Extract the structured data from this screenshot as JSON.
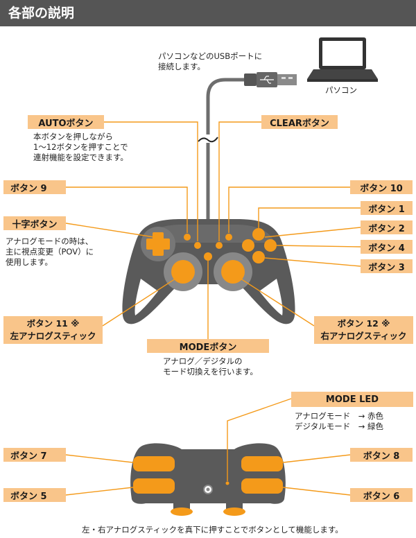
{
  "title": "各部の説明",
  "colors": {
    "accent": "#f49a1a",
    "label_bg": "#f9c58a",
    "controller_body": "#5a5a5a",
    "header_bg": "#555555"
  },
  "usb_note": [
    "パソコンなどのUSBポートに",
    "接続します。"
  ],
  "pc_label": "パソコン",
  "auto": {
    "label": "AUTOボタン",
    "desc": [
      "本ボタンを押しながら",
      "1〜12ボタンを押すことで",
      "連射機能を設定できます。"
    ]
  },
  "clear": {
    "label": "CLEARボタン"
  },
  "button9": "ボタン 9",
  "button10": "ボタン 10",
  "button1": "ボタン 1",
  "button2": "ボタン 2",
  "button4": "ボタン 4",
  "button3": "ボタン 3",
  "dpad": {
    "label": "十字ボタン",
    "desc": [
      "アナログモードの時は、",
      "主に視点変更（POV）に",
      "使用します。"
    ]
  },
  "button11": {
    "line1": "ボタン 11 ※",
    "line2": "左アナログスティック"
  },
  "button12": {
    "line1": "ボタン 12 ※",
    "line2": "右アナログスティック"
  },
  "mode": {
    "label": "MODEボタン",
    "desc": [
      "アナログ／デジタルの",
      "モード切換えを行います。"
    ]
  },
  "mode_led": {
    "label": "MODE LED",
    "desc": [
      "アナログモード　→ 赤色",
      "デジタルモード　→ 緑色"
    ]
  },
  "button7": "ボタン 7",
  "button5": "ボタン 5",
  "button8": "ボタン 8",
  "button6": "ボタン 6",
  "footnote": "左・右アナログスティックを真下に押すことでボタンとして機能します。"
}
